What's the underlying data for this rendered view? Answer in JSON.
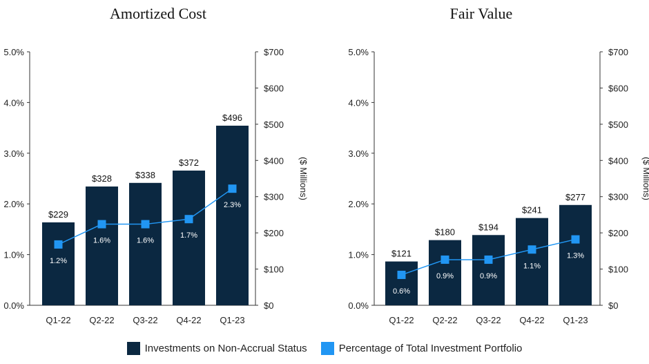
{
  "colors": {
    "bar": "#0b2841",
    "line": "#2196f3",
    "axis": "#333333"
  },
  "legend": {
    "bar_label": "Investments on Non-Accrual Status",
    "line_label": "Percentage of Total Investment Portfolio"
  },
  "chart_data": [
    {
      "type": "bar",
      "title": "Amortized Cost",
      "categories": [
        "Q1-22",
        "Q2-22",
        "Q3-22",
        "Q4-22",
        "Q1-23"
      ],
      "series": [
        {
          "name": "Investments on Non-Accrual Status",
          "type": "bar",
          "axis": "right",
          "values": [
            229,
            328,
            338,
            372,
            496
          ],
          "labels": [
            "$229",
            "$328",
            "$338",
            "$372",
            "$496"
          ]
        },
        {
          "name": "Percentage of Total Investment Portfolio",
          "type": "line",
          "axis": "left",
          "values": [
            1.2,
            1.6,
            1.6,
            1.7,
            2.3
          ],
          "labels": [
            "1.2%",
            "1.6%",
            "1.6%",
            "1.7%",
            "2.3%"
          ]
        }
      ],
      "y_left": {
        "range": [
          0,
          5
        ],
        "ticks": [
          "0.0%",
          "1.0%",
          "2.0%",
          "3.0%",
          "4.0%",
          "5.0%"
        ]
      },
      "y_right": {
        "range": [
          0,
          700
        ],
        "label": "($ Millions)",
        "ticks": [
          "$0",
          "$100",
          "$200",
          "$300",
          "$400",
          "$500",
          "$600",
          "$700"
        ]
      },
      "grid": false
    },
    {
      "type": "bar",
      "title": "Fair Value",
      "categories": [
        "Q1-22",
        "Q2-22",
        "Q3-22",
        "Q4-22",
        "Q1-23"
      ],
      "series": [
        {
          "name": "Investments on Non-Accrual Status",
          "type": "bar",
          "axis": "right",
          "values": [
            121,
            180,
            194,
            241,
            277
          ],
          "labels": [
            "$121",
            "$180",
            "$194",
            "$241",
            "$277"
          ]
        },
        {
          "name": "Percentage of Total Investment Portfolio",
          "type": "line",
          "axis": "left",
          "values": [
            0.6,
            0.9,
            0.9,
            1.1,
            1.3
          ],
          "labels": [
            "0.6%",
            "0.9%",
            "0.9%",
            "1.1%",
            "1.3%"
          ]
        }
      ],
      "y_left": {
        "range": [
          0,
          5
        ],
        "ticks": [
          "0.0%",
          "1.0%",
          "2.0%",
          "3.0%",
          "4.0%",
          "5.0%"
        ]
      },
      "y_right": {
        "range": [
          0,
          700
        ],
        "label": "($ Millions)",
        "ticks": [
          "$0",
          "$100",
          "$200",
          "$300",
          "$400",
          "$500",
          "$600",
          "$700"
        ]
      },
      "grid": false,
      "legend_position": "bottom"
    }
  ]
}
